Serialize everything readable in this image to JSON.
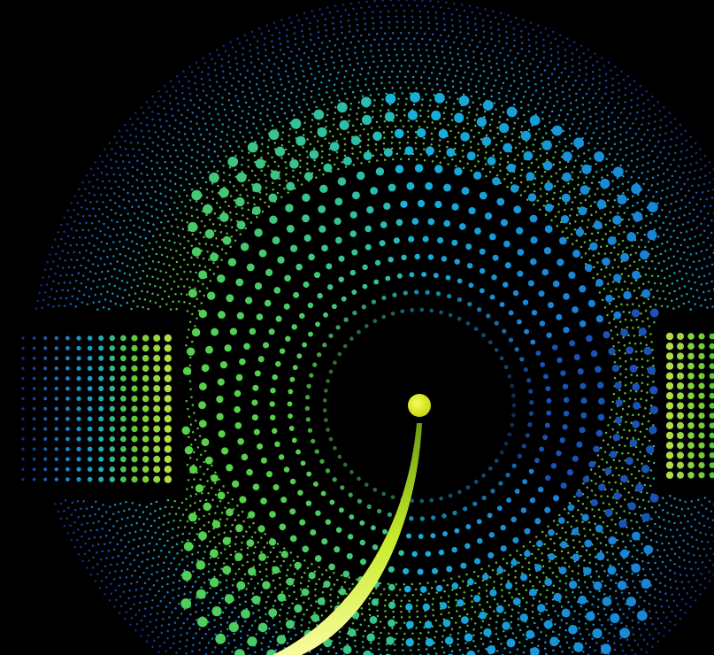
{
  "artwork": {
    "background_color": "#000000",
    "palette": [
      "#1a2f9a",
      "#1a7fd6",
      "#18b4d8",
      "#5fd43a",
      "#b9e84a",
      "#d6ef1c"
    ],
    "elements": [
      "outer-dotted-ring",
      "inner-dotted-spiral",
      "left-dot-panel",
      "right-dot-panel",
      "central-yellow-dot",
      "sweeping-light-streak"
    ]
  }
}
